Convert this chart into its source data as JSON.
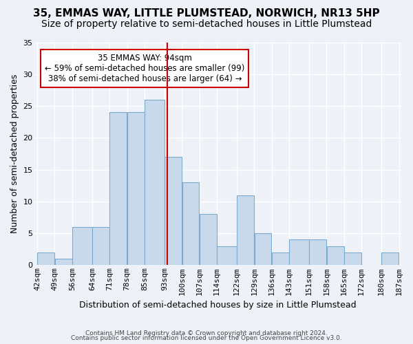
{
  "title": "35, EMMAS WAY, LITTLE PLUMSTEAD, NORWICH, NR13 5HP",
  "subtitle": "Size of property relative to semi-detached houses in Little Plumstead",
  "xlabel": "Distribution of semi-detached houses by size in Little Plumstead",
  "ylabel": "Number of semi-detached properties",
  "footnote1": "Contains HM Land Registry data © Crown copyright and database right 2024.",
  "footnote2": "Contains public sector information licensed under the Open Government Licence v3.0.",
  "bin_edges": [
    42,
    49,
    56,
    64,
    71,
    78,
    85,
    93,
    100,
    107,
    114,
    122,
    129,
    136,
    143,
    151,
    158,
    165,
    172,
    180,
    187
  ],
  "bin_labels": [
    "42sqm",
    "49sqm",
    "56sqm",
    "64sqm",
    "71sqm",
    "78sqm",
    "85sqm",
    "93sqm",
    "100sqm",
    "107sqm",
    "114sqm",
    "122sqm",
    "129sqm",
    "136sqm",
    "143sqm",
    "151sqm",
    "158sqm",
    "165sqm",
    "172sqm",
    "180sqm",
    "187sqm"
  ],
  "values": [
    2,
    1,
    6,
    6,
    24,
    24,
    26,
    17,
    13,
    8,
    3,
    11,
    5,
    2,
    4,
    4,
    3,
    2,
    0,
    2
  ],
  "bar_color": "#c9d9ec",
  "bar_edge_color": "#7aaad0",
  "vline_x": 94,
  "vline_color": "#cc0000",
  "annotation_text": "35 EMMAS WAY: 94sqm\n← 59% of semi-detached houses are smaller (99)\n38% of semi-detached houses are larger (64) →",
  "annotation_box_color": "#ffffff",
  "annotation_box_edge": "#cc0000",
  "ylim": [
    0,
    35
  ],
  "yticks": [
    0,
    5,
    10,
    15,
    20,
    25,
    30,
    35
  ],
  "background_color": "#eef2f8",
  "grid_color": "#ffffff",
  "title_fontsize": 11,
  "subtitle_fontsize": 10,
  "axis_label_fontsize": 9,
  "tick_fontsize": 8
}
